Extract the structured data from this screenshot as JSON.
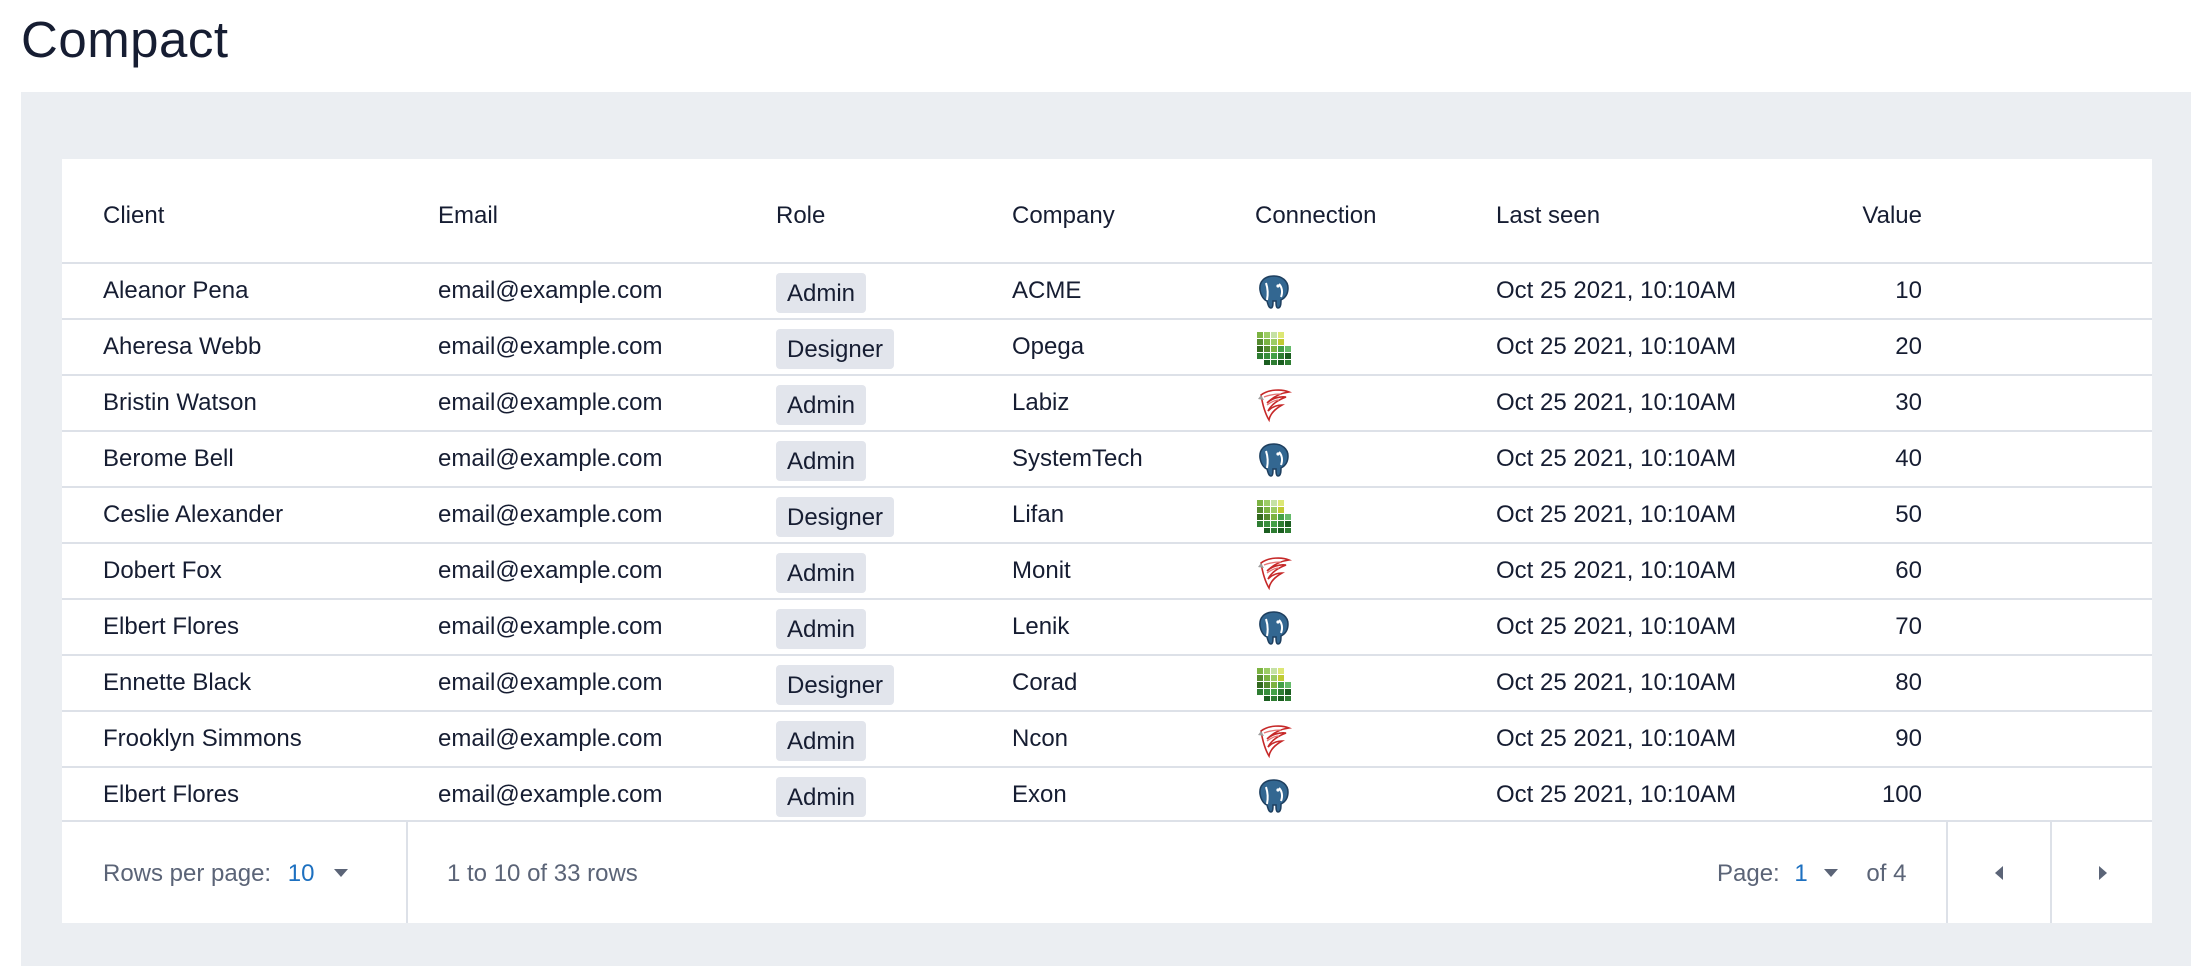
{
  "page": {
    "title": "Compact"
  },
  "table": {
    "columns": {
      "client": "Client",
      "email": "Email",
      "role": "Role",
      "company": "Company",
      "connection": "Connection",
      "last_seen": "Last seen",
      "value": "Value"
    },
    "rows": [
      {
        "client": "Aleanor Pena",
        "email": "email@example.com",
        "role": "Admin",
        "company": "ACME",
        "connection": "postgresql-icon",
        "last_seen": "Oct 25  2021, 10:10AM",
        "value": "10"
      },
      {
        "client": "Aheresa Webb",
        "email": "email@example.com",
        "role": "Designer",
        "company": "Opega",
        "connection": "grid-database-icon",
        "last_seen": "Oct 25  2021, 10:10AM",
        "value": "20"
      },
      {
        "client": "Bristin Watson",
        "email": "email@example.com",
        "role": "Admin",
        "company": "Labiz",
        "connection": "sql-server-icon",
        "last_seen": "Oct 25  2021, 10:10AM",
        "value": "30"
      },
      {
        "client": "Berome Bell",
        "email": "email@example.com",
        "role": "Admin",
        "company": "SystemTech",
        "connection": "postgresql-icon",
        "last_seen": "Oct 25  2021, 10:10AM",
        "value": "40"
      },
      {
        "client": "Ceslie Alexander",
        "email": "email@example.com",
        "role": "Designer",
        "company": "Lifan",
        "connection": "grid-database-icon",
        "last_seen": "Oct 25  2021, 10:10AM",
        "value": "50"
      },
      {
        "client": "Dobert Fox",
        "email": "email@example.com",
        "role": "Admin",
        "company": "Monit",
        "connection": "sql-server-icon",
        "last_seen": "Oct 25  2021, 10:10AM",
        "value": "60"
      },
      {
        "client": "Elbert Flores",
        "email": "email@example.com",
        "role": "Admin",
        "company": "Lenik",
        "connection": "postgresql-icon",
        "last_seen": "Oct 25  2021, 10:10AM",
        "value": "70"
      },
      {
        "client": "Ennette Black",
        "email": "email@example.com",
        "role": "Designer",
        "company": "Corad",
        "connection": "grid-database-icon",
        "last_seen": "Oct 25  2021, 10:10AM",
        "value": "80"
      },
      {
        "client": "Frooklyn Simmons",
        "email": "email@example.com",
        "role": "Admin",
        "company": "Ncon",
        "connection": "sql-server-icon",
        "last_seen": "Oct 25  2021, 10:10AM",
        "value": "90"
      },
      {
        "client": "Elbert Flores",
        "email": "email@example.com",
        "role": "Admin",
        "company": "Exon",
        "connection": "postgresql-icon",
        "last_seen": "Oct 25  2021, 10:10AM",
        "value": "100"
      }
    ]
  },
  "footer": {
    "rows_per_page_label": "Rows per page:",
    "rows_per_page_value": "10",
    "range_text": "1 to 10 of 33 rows",
    "page_label": "Page:",
    "page_value": "1",
    "page_total": "of 4"
  },
  "colors": {
    "accent": "#1d70c0",
    "frame_bg": "#ebeef2",
    "badge_bg": "#e2e5ec",
    "text": "#161d32",
    "muted": "#5b6477"
  }
}
